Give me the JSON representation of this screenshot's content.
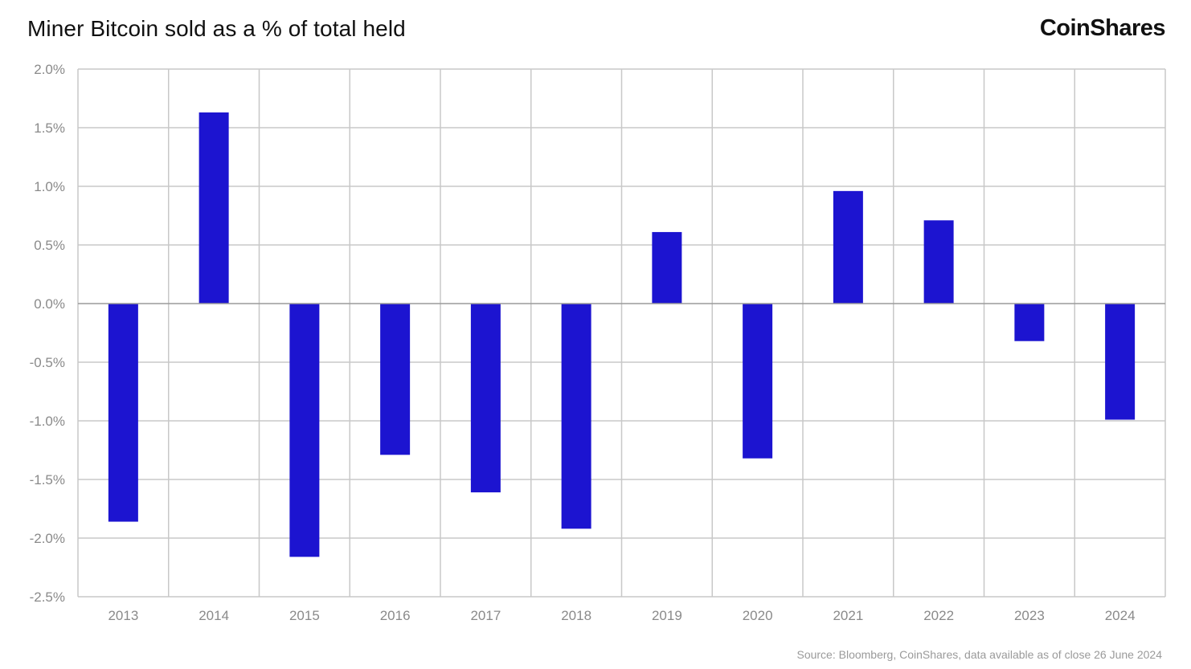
{
  "header": {
    "title": "Miner Bitcoin sold as a % of total held",
    "brand": "CoinShares"
  },
  "footer": {
    "source": "Source: Bloomberg, CoinShares, data available as of close 26 June 2024"
  },
  "colors": {
    "bar": "#1C14D0",
    "grid": "#c8c8c8",
    "tick_text": "#8a8a8a"
  },
  "chart_data": {
    "type": "bar",
    "categories": [
      "2013",
      "2014",
      "2015",
      "2016",
      "2017",
      "2018",
      "2019",
      "2020",
      "2021",
      "2022",
      "2023",
      "2024"
    ],
    "values": [
      -1.86,
      1.63,
      -2.16,
      -1.29,
      -1.61,
      -1.92,
      0.61,
      -1.32,
      0.96,
      0.71,
      -0.32,
      -0.99
    ],
    "ylim": [
      -2.5,
      2.0
    ],
    "yticks": [
      2.0,
      1.5,
      1.0,
      0.5,
      0.0,
      -0.5,
      -1.0,
      -1.5,
      -2.0,
      -2.5
    ],
    "ytick_labels": [
      "2.0%",
      "1.5%",
      "1.0%",
      "0.5%",
      "0.0%",
      "-0.5%",
      "-1.0%",
      "-1.5%",
      "-2.0%",
      "-2.5%"
    ],
    "grid": true,
    "xlabel": "",
    "ylabel": ""
  }
}
